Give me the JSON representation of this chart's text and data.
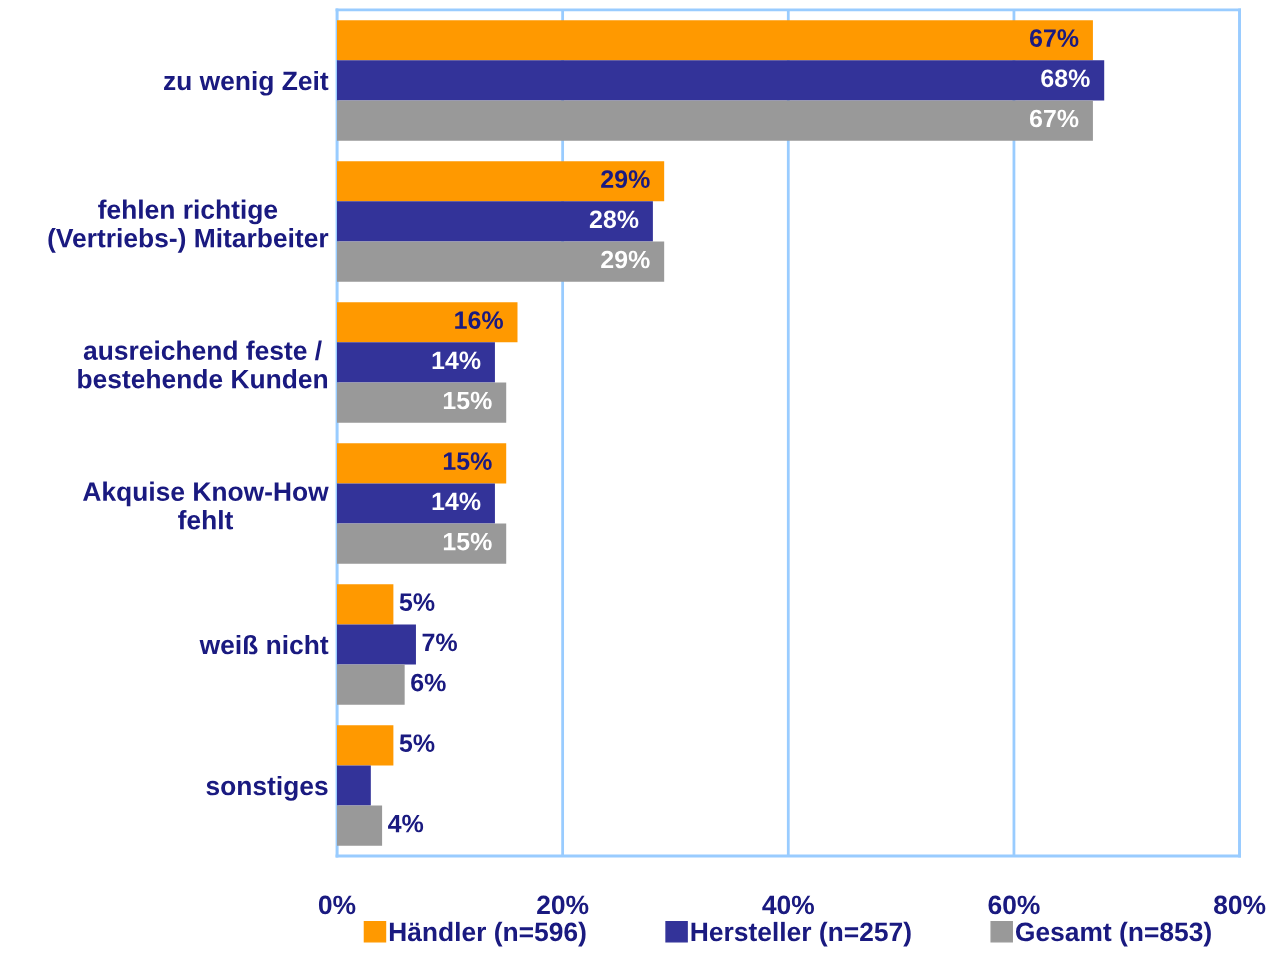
{
  "chart_data": {
    "type": "bar",
    "orientation": "horizontal",
    "categories": [
      "zu wenig Zeit",
      "fehlen richtige\n(Vertriebs-) Mitarbeiter",
      "ausreichend feste /\nbestehende Kunden",
      "Akquise Know-How\nfehlt",
      "weiß nicht",
      "sonstiges"
    ],
    "series": [
      {
        "name": "Händler (n=596)",
        "color": "#ff9900",
        "values": [
          67,
          29,
          16,
          15,
          5,
          5
        ],
        "value_labels": [
          "67%",
          "29%",
          "16%",
          "15%",
          "5%",
          "5%"
        ]
      },
      {
        "name": "Hersteller (n=257)",
        "color": "#333399",
        "values": [
          68,
          28,
          14,
          14,
          7,
          3
        ],
        "value_labels": [
          "68%",
          "28%",
          "14%",
          "14%",
          "7%",
          null
        ]
      },
      {
        "name": "Gesamt (n=853)",
        "color": "#999999",
        "values": [
          67,
          29,
          15,
          15,
          6,
          4
        ],
        "value_labels": [
          "67%",
          "29%",
          "15%",
          "15%",
          "6%",
          "4%"
        ]
      }
    ],
    "xlim": [
      0,
      80
    ],
    "xticks": [
      {
        "value": 0,
        "label": "0%"
      },
      {
        "value": 20,
        "label": "20%"
      },
      {
        "value": 40,
        "label": "40%"
      },
      {
        "value": 60,
        "label": "60%"
      },
      {
        "value": 80,
        "label": "80%"
      }
    ],
    "grid": "x",
    "legend": "bottom"
  }
}
